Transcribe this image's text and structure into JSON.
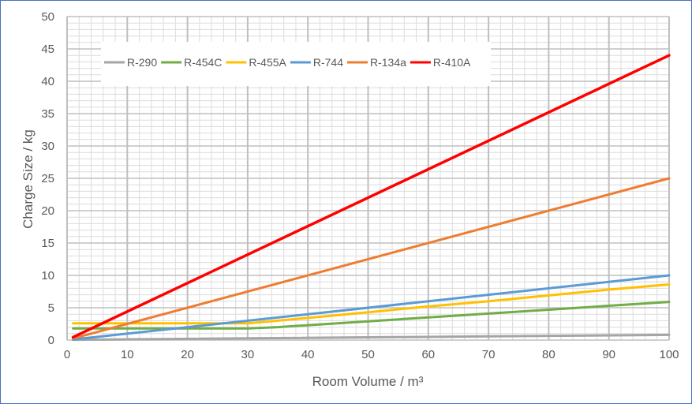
{
  "chart_data": {
    "type": "line",
    "title": "",
    "xlabel": "Room Volume / m³",
    "ylabel": "Charge Size / kg",
    "xlim": [
      0,
      100
    ],
    "ylim": [
      0,
      50
    ],
    "x_ticks": [
      "0",
      "10",
      "20",
      "30",
      "40",
      "50",
      "60",
      "70",
      "80",
      "90",
      "100"
    ],
    "y_ticks": [
      "0",
      "5",
      "10",
      "15",
      "20",
      "25",
      "30",
      "35",
      "40",
      "45",
      "50"
    ],
    "grid": true,
    "legend_position": "top",
    "series": [
      {
        "name": "R-290",
        "color": "#a5a5a5",
        "x": [
          1,
          100
        ],
        "y": [
          0.05,
          0.8
        ]
      },
      {
        "name": "R-454C",
        "color": "#70ad47",
        "x": [
          1,
          30,
          35,
          50,
          60,
          70,
          80,
          90,
          100
        ],
        "y": [
          1.8,
          1.8,
          2.0,
          2.9,
          3.5,
          4.1,
          4.7,
          5.3,
          5.9
        ]
      },
      {
        "name": "R-455A",
        "color": "#ffc000",
        "x": [
          1,
          30,
          35,
          50,
          60,
          70,
          80,
          90,
          100
        ],
        "y": [
          2.6,
          2.6,
          3.0,
          4.3,
          5.2,
          6.0,
          6.9,
          7.8,
          8.6
        ]
      },
      {
        "name": "R-744",
        "color": "#5b9bd5",
        "x": [
          1,
          100
        ],
        "y": [
          0.1,
          10.0
        ]
      },
      {
        "name": "R-134a",
        "color": "#ed7d31",
        "x": [
          1,
          100
        ],
        "y": [
          0.25,
          25.0
        ]
      },
      {
        "name": "R-410A",
        "color": "#ff0000",
        "x": [
          1,
          100
        ],
        "y": [
          0.45,
          44.0
        ]
      }
    ]
  }
}
